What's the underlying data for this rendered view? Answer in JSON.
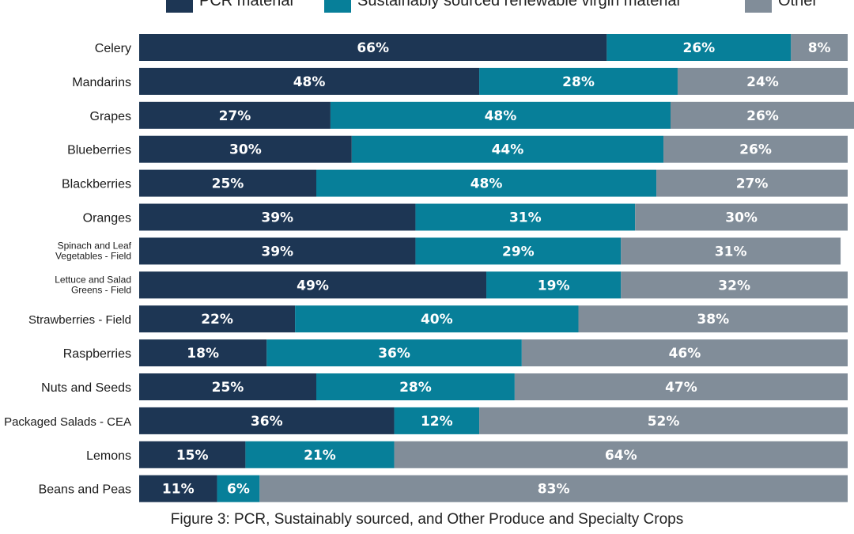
{
  "chart_data": {
    "type": "bar",
    "orientation": "horizontal",
    "stacked": true,
    "categories": [
      "Celery",
      "Mandarins",
      "Grapes",
      "Blueberries",
      "Blackberries",
      "Oranges",
      "Spinach and Leaf\nVegetables - Field",
      "Lettuce and Salad\nGreens - Field",
      "Strawberries - Field",
      "Raspberries",
      "Nuts and Seeds",
      "Packaged Salads - CEA",
      "Lemons",
      "Beans and Peas"
    ],
    "series": [
      {
        "name": "PCR material",
        "values": [
          66,
          48,
          27,
          30,
          25,
          39,
          39,
          49,
          22,
          18,
          25,
          36,
          15,
          11
        ]
      },
      {
        "name": "Sustainably sourced renewable virgin material",
        "values": [
          26,
          28,
          48,
          44,
          48,
          31,
          29,
          19,
          40,
          36,
          28,
          12,
          21,
          6
        ]
      },
      {
        "name": "Other",
        "values": [
          8,
          24,
          26,
          26,
          27,
          30,
          31,
          32,
          38,
          46,
          47,
          52,
          64,
          83
        ]
      }
    ],
    "colors": [
      "#1d3654",
      "#077f99",
      "#818d99"
    ],
    "value_suffix": "%",
    "xlim": [
      0,
      100
    ],
    "legend_position": "top",
    "grid": false
  },
  "caption": "Figure 3: PCR, Sustainably sourced, and Other Produce and Specialty Crops"
}
